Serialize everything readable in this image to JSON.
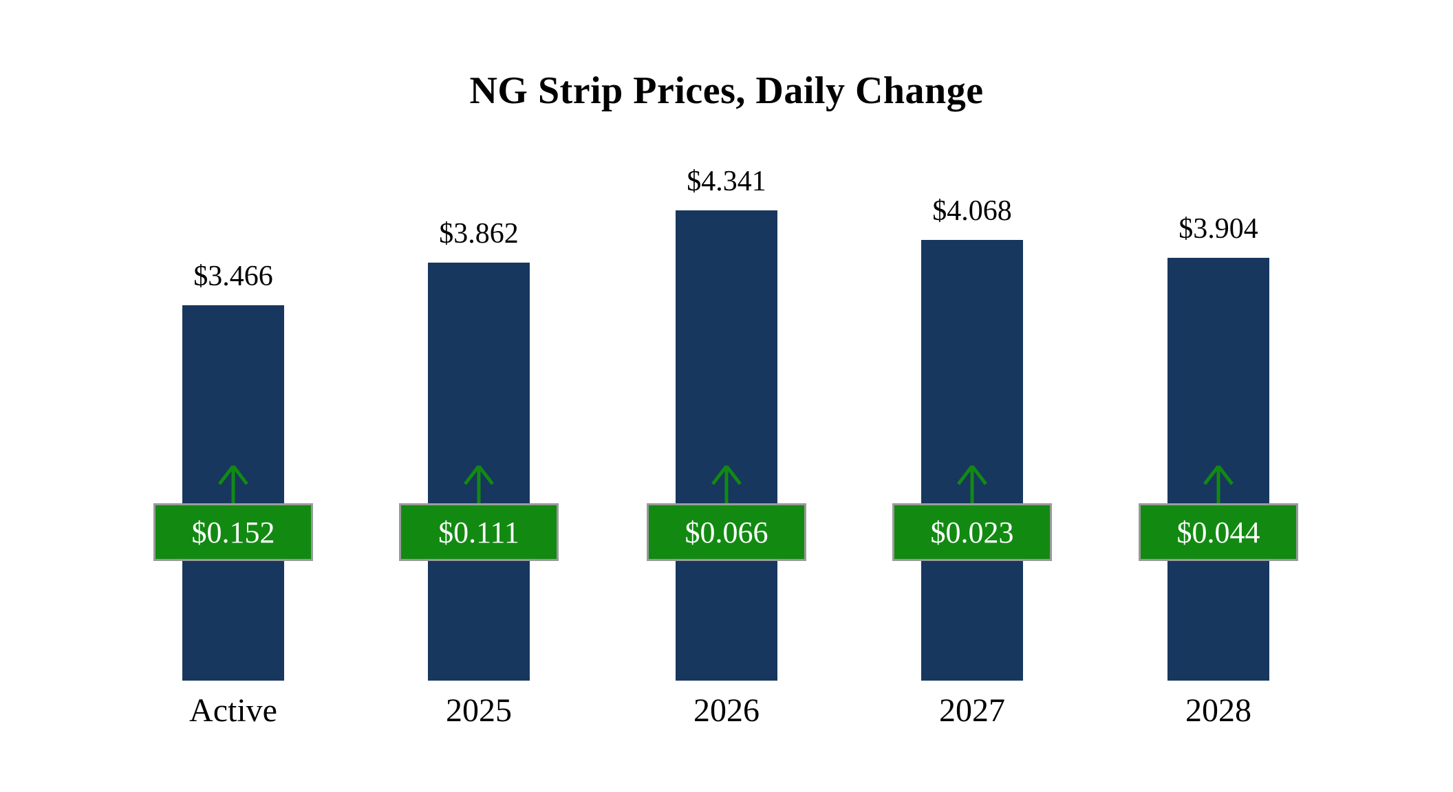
{
  "chart_data": {
    "type": "bar",
    "title": "NG Strip Prices, Daily Change",
    "categories": [
      "Active",
      "2025",
      "2026",
      "2027",
      "2028"
    ],
    "values": [
      3.466,
      3.862,
      4.341,
      4.068,
      3.904
    ],
    "value_labels": [
      "$3.466",
      "$3.862",
      "$4.341",
      "$4.068",
      "$3.904"
    ],
    "changes": [
      0.152,
      0.111,
      0.066,
      0.023,
      0.044
    ],
    "change_labels": [
      "$0.152",
      "$0.111",
      "$0.066",
      "$0.023",
      "$0.044"
    ],
    "change_direction": "up",
    "xlabel": "",
    "ylabel": "",
    "ylim": [
      0,
      4.6
    ],
    "grid": false,
    "legend": false,
    "colors": {
      "bar": "#17375e",
      "change_badge": "#128a12",
      "badge_border": "#9a9a9a",
      "badge_text": "#ffffff",
      "value_text": "#000000",
      "arrow": "#128a12",
      "background": "#ffffff"
    }
  }
}
